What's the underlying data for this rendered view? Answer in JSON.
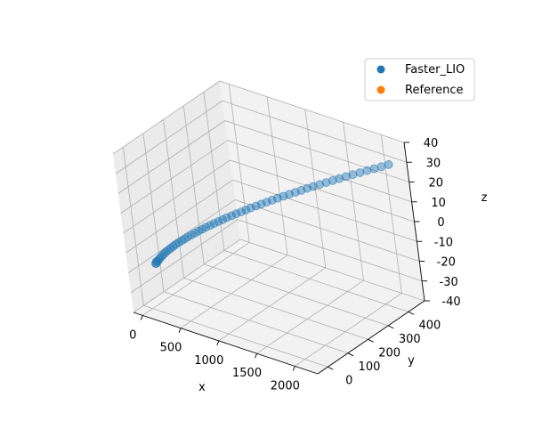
{
  "chart_data": {
    "type": "scatter",
    "projection": "3d",
    "xlabel": "x",
    "ylabel": "y",
    "zlabel": "z",
    "xlim": [
      -120,
      2300
    ],
    "ylim": [
      -50,
      480
    ],
    "zlim": [
      -40,
      40
    ],
    "x_ticks": [
      0,
      500,
      1000,
      1500,
      2000
    ],
    "y_ticks": [
      0,
      100,
      200,
      300,
      400
    ],
    "z_ticks": [
      -40,
      -30,
      -20,
      -10,
      0,
      10,
      20,
      30,
      40
    ],
    "grid": true,
    "legend_position": "top-right",
    "series": [
      {
        "name": "Faster_LIO",
        "color": "#1f77b4",
        "points": [
          {
            "x": 0,
            "y": 40,
            "z": -20
          },
          {
            "x": 5,
            "y": 41,
            "z": -20
          },
          {
            "x": 10,
            "y": 42,
            "z": -19
          },
          {
            "x": 20,
            "y": 44,
            "z": -19
          },
          {
            "x": 35,
            "y": 46,
            "z": -18
          },
          {
            "x": 50,
            "y": 48,
            "z": -17
          },
          {
            "x": 70,
            "y": 51,
            "z": -16
          },
          {
            "x": 90,
            "y": 54,
            "z": -15
          },
          {
            "x": 110,
            "y": 57,
            "z": -14
          },
          {
            "x": 135,
            "y": 60,
            "z": -13
          },
          {
            "x": 160,
            "y": 64,
            "z": -12
          },
          {
            "x": 185,
            "y": 68,
            "z": -11
          },
          {
            "x": 210,
            "y": 72,
            "z": -10
          },
          {
            "x": 240,
            "y": 77,
            "z": -9
          },
          {
            "x": 270,
            "y": 82,
            "z": -8
          },
          {
            "x": 300,
            "y": 87,
            "z": -7
          },
          {
            "x": 330,
            "y": 92,
            "z": -6
          },
          {
            "x": 365,
            "y": 98,
            "z": -5
          },
          {
            "x": 400,
            "y": 104,
            "z": -4
          },
          {
            "x": 435,
            "y": 110,
            "z": -3
          },
          {
            "x": 470,
            "y": 116,
            "z": -2
          },
          {
            "x": 505,
            "y": 122,
            "z": -1
          },
          {
            "x": 545,
            "y": 129,
            "z": 0
          },
          {
            "x": 585,
            "y": 136,
            "z": 1
          },
          {
            "x": 625,
            "y": 143,
            "z": 2
          },
          {
            "x": 665,
            "y": 150,
            "z": 3
          },
          {
            "x": 705,
            "y": 157,
            "z": 4
          },
          {
            "x": 750,
            "y": 165,
            "z": 5
          },
          {
            "x": 795,
            "y": 173,
            "z": 6
          },
          {
            "x": 840,
            "y": 181,
            "z": 7
          },
          {
            "x": 885,
            "y": 189,
            "z": 8
          },
          {
            "x": 930,
            "y": 197,
            "z": 9
          },
          {
            "x": 980,
            "y": 206,
            "z": 10
          },
          {
            "x": 1030,
            "y": 215,
            "z": 11
          },
          {
            "x": 1080,
            "y": 224,
            "z": 12
          },
          {
            "x": 1130,
            "y": 233,
            "z": 13
          },
          {
            "x": 1180,
            "y": 242,
            "z": 14
          },
          {
            "x": 1235,
            "y": 252,
            "z": 15
          },
          {
            "x": 1290,
            "y": 262,
            "z": 16
          },
          {
            "x": 1345,
            "y": 272,
            "z": 17
          },
          {
            "x": 1400,
            "y": 282,
            "z": 18
          },
          {
            "x": 1455,
            "y": 292,
            "z": 19
          },
          {
            "x": 1510,
            "y": 302,
            "z": 20
          },
          {
            "x": 1570,
            "y": 313,
            "z": 21
          },
          {
            "x": 1630,
            "y": 324,
            "z": 22
          },
          {
            "x": 1690,
            "y": 335,
            "z": 23
          },
          {
            "x": 1750,
            "y": 346,
            "z": 24
          },
          {
            "x": 1810,
            "y": 357,
            "z": 25
          },
          {
            "x": 1875,
            "y": 369,
            "z": 26
          },
          {
            "x": 1940,
            "y": 381,
            "z": 27
          },
          {
            "x": 2005,
            "y": 393,
            "z": 28
          },
          {
            "x": 2070,
            "y": 405,
            "z": 29
          },
          {
            "x": 2135,
            "y": 417,
            "z": 30
          },
          {
            "x": 2200,
            "y": 430,
            "z": 31
          }
        ]
      },
      {
        "name": "Reference",
        "color": "#ff7f0e",
        "points": []
      }
    ]
  }
}
